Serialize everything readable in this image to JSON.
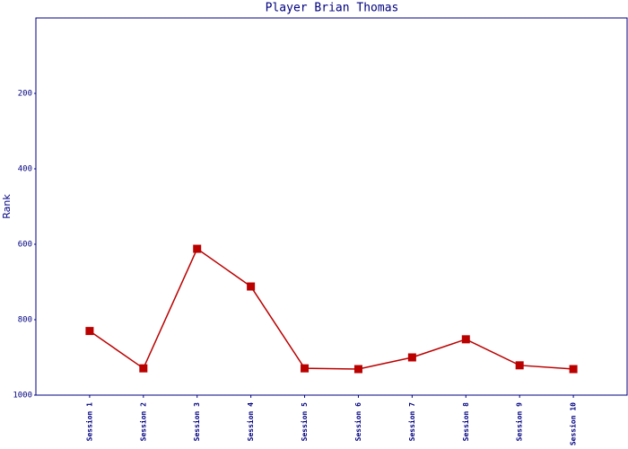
{
  "chart_data": {
    "type": "line",
    "title": "Player Brian Thomas",
    "y_label": "Rank",
    "categories": [
      "Session 1",
      "Session 2",
      "Session 3",
      "Session 4",
      "Session 5",
      "Session 6",
      "Session 7",
      "Session 8",
      "Session 9",
      "Session 10"
    ],
    "series": [
      {
        "name": "Rank",
        "color": "#bb0000",
        "values": [
          830,
          929,
          612,
          712,
          929,
          931,
          900,
          852,
          921,
          931
        ]
      }
    ],
    "ylim": [
      0,
      1000
    ],
    "y_inverted": true,
    "yticks": [
      200,
      400,
      600,
      800,
      1000
    ],
    "grid": false
  }
}
